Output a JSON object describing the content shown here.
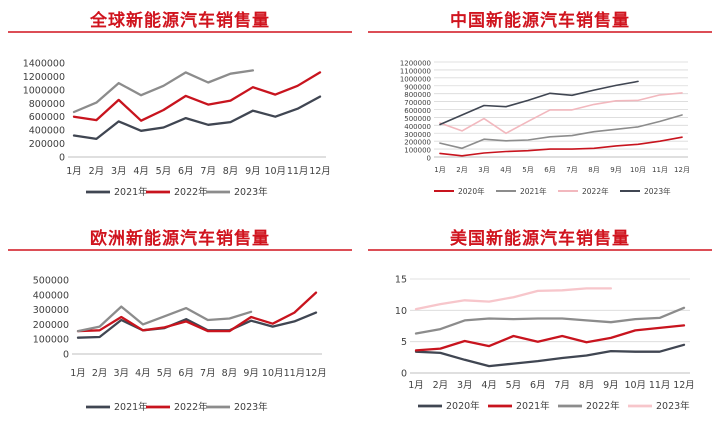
{
  "chart_data": [
    {
      "type": "line",
      "title": "全球新能源汽车销售量",
      "categories": [
        "1月",
        "2月",
        "3月",
        "4月",
        "5月",
        "6月",
        "7月",
        "8月",
        "9月",
        "10月",
        "11月",
        "12月"
      ],
      "ylim": [
        0,
        1400000
      ],
      "yticks": [
        0,
        200000,
        400000,
        600000,
        800000,
        1000000,
        1200000,
        1400000
      ],
      "grid": false,
      "legend": "bottom",
      "series": [
        {
          "name": "2021年",
          "color": "#404652",
          "values": [
            320000,
            270000,
            530000,
            390000,
            440000,
            580000,
            480000,
            520000,
            690000,
            600000,
            720000,
            900000
          ]
        },
        {
          "name": "2022年",
          "color": "#c8141e",
          "values": [
            600000,
            550000,
            850000,
            540000,
            700000,
            910000,
            780000,
            840000,
            1040000,
            930000,
            1060000,
            1260000
          ]
        },
        {
          "name": "2023年",
          "color": "#8c8c8c",
          "values": [
            670000,
            810000,
            1100000,
            920000,
            1060000,
            1260000,
            1110000,
            1240000,
            1290000,
            null,
            null,
            null
          ]
        }
      ]
    },
    {
      "type": "line",
      "title": "中国新能源汽车销售量",
      "categories": [
        "1月",
        "2月",
        "3月",
        "4月",
        "5月",
        "6月",
        "7月",
        "8月",
        "9月",
        "10月",
        "11月",
        "12月"
      ],
      "ylim": [
        0,
        1200000
      ],
      "yticks": [
        0,
        100000,
        200000,
        300000,
        400000,
        500000,
        600000,
        700000,
        800000,
        900000,
        1000000,
        1100000,
        1200000
      ],
      "grid": true,
      "legend": "bottom",
      "series": [
        {
          "name": "2020年",
          "color": "#c8141e",
          "values": [
            45000,
            15000,
            50000,
            70000,
            80000,
            100000,
            100000,
            110000,
            140000,
            160000,
            200000,
            250000
          ]
        },
        {
          "name": "2021年",
          "color": "#8c8c8c",
          "values": [
            175000,
            110000,
            225000,
            205000,
            215000,
            255000,
            270000,
            320000,
            350000,
            380000,
            450000,
            530000
          ]
        },
        {
          "name": "2022年",
          "color": "#f2b8be",
          "values": [
            430000,
            330000,
            485000,
            300000,
            450000,
            595000,
            595000,
            665000,
            710000,
            715000,
            785000,
            810000
          ]
        },
        {
          "name": "2023年",
          "color": "#404652",
          "values": [
            410000,
            530000,
            650000,
            635000,
            715000,
            805000,
            780000,
            845000,
            905000,
            955000,
            null,
            null
          ]
        }
      ]
    },
    {
      "type": "line",
      "title": "欧洲新能源汽车销售量",
      "categories": [
        "1月",
        "2月",
        "3月",
        "4月",
        "5月",
        "6月",
        "7月",
        "8月",
        "9月",
        "10月",
        "11月",
        "12月"
      ],
      "ylim": [
        0,
        500000
      ],
      "yticks": [
        0,
        100000,
        200000,
        300000,
        400000,
        500000
      ],
      "grid": false,
      "legend": "bottom",
      "series": [
        {
          "name": "2021年",
          "color": "#404652",
          "values": [
            110000,
            115000,
            230000,
            160000,
            175000,
            235000,
            160000,
            160000,
            225000,
            185000,
            220000,
            280000
          ]
        },
        {
          "name": "2022年",
          "color": "#c8141e",
          "values": [
            155000,
            160000,
            250000,
            160000,
            180000,
            220000,
            155000,
            155000,
            250000,
            205000,
            280000,
            415000
          ]
        },
        {
          "name": "2023年",
          "color": "#8c8c8c",
          "values": [
            155000,
            185000,
            320000,
            200000,
            255000,
            310000,
            230000,
            240000,
            285000,
            null,
            null,
            null
          ]
        }
      ]
    },
    {
      "type": "line",
      "title": "美国新能源汽车销售量",
      "categories": [
        "1月",
        "2月",
        "3月",
        "4月",
        "5月",
        "6月",
        "7月",
        "8月",
        "9月",
        "10月",
        "11月",
        "12月"
      ],
      "ylim": [
        0,
        15
      ],
      "yticks": [
        0,
        5,
        10,
        15
      ],
      "grid": true,
      "legend": "bottom",
      "series": [
        {
          "name": "2020年",
          "color": "#404652",
          "values": [
            3.4,
            3.2,
            2.1,
            1.1,
            1.5,
            1.9,
            2.4,
            2.8,
            3.5,
            3.4,
            3.4,
            4.5
          ]
        },
        {
          "name": "2021年",
          "color": "#c8141e",
          "values": [
            3.6,
            3.9,
            5.1,
            4.3,
            5.9,
            5.0,
            5.9,
            4.9,
            5.6,
            6.8,
            7.2,
            7.6
          ]
        },
        {
          "name": "2022年",
          "color": "#8c8c8c",
          "values": [
            6.3,
            7.0,
            8.4,
            8.7,
            8.6,
            8.7,
            8.7,
            8.4,
            8.1,
            8.6,
            8.8,
            10.4
          ]
        },
        {
          "name": "2023年",
          "color": "#f7c6cb",
          "values": [
            10.2,
            11.0,
            11.6,
            11.4,
            12.1,
            13.1,
            13.2,
            13.5,
            13.5,
            null,
            null,
            null
          ]
        }
      ]
    }
  ]
}
